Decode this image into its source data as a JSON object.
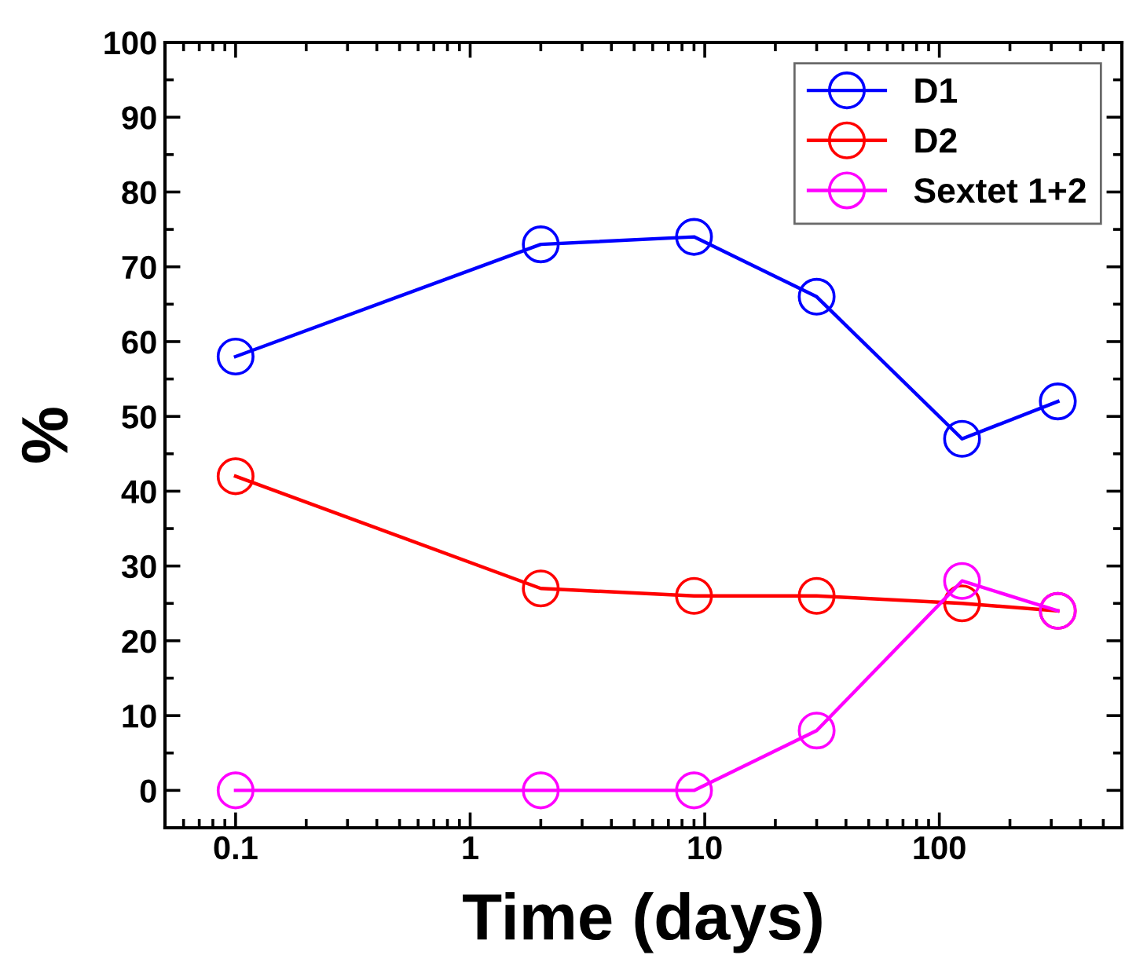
{
  "chart_data": {
    "type": "line",
    "xlabel": "Time (days)",
    "ylabel": "%",
    "log": "x",
    "x": [
      0.1,
      2,
      9,
      30,
      125,
      320
    ],
    "series": [
      {
        "name": "D1",
        "color": "#0000ff",
        "values": [
          58,
          73,
          74,
          66,
          47,
          52
        ]
      },
      {
        "name": "D2",
        "color": "#ff0000",
        "values": [
          42,
          27,
          26,
          26,
          25,
          24
        ]
      },
      {
        "name": "Sextet 1+2",
        "color": "#ff00ff",
        "values": [
          0,
          0,
          0,
          8,
          28,
          24
        ]
      }
    ],
    "xlim": [
      0.05,
      600
    ],
    "xticks": [
      0.1,
      1,
      10,
      100
    ],
    "ylim": [
      -5,
      100
    ],
    "yticks": [
      0,
      10,
      20,
      30,
      40,
      50,
      60,
      70,
      80,
      90,
      100
    ],
    "grid": false,
    "legend": "top right",
    "marker": "circle",
    "line_style": "solid"
  }
}
